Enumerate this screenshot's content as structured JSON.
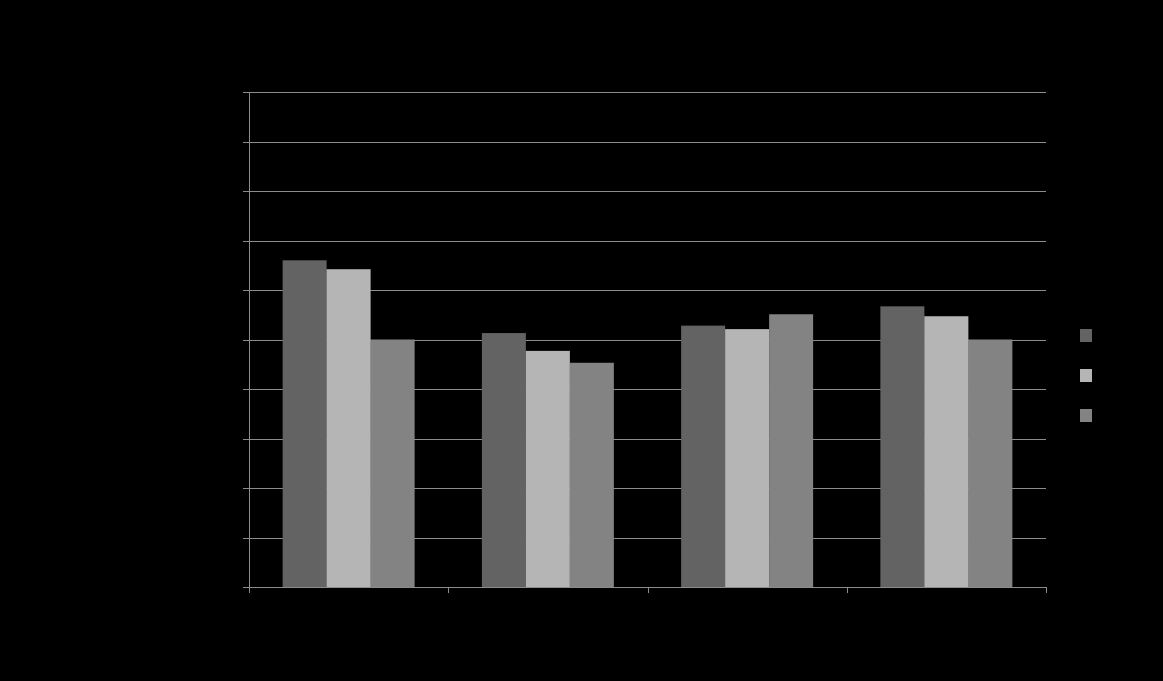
{
  "chart_data": {
    "type": "bar",
    "categories": [
      "",
      "",
      "",
      ""
    ],
    "series": [
      {
        "color": "#636363",
        "values": [
          66,
          51.3,
          52.8,
          56.7
        ]
      },
      {
        "color": "#b5b5b5",
        "values": [
          64.2,
          47.7,
          52.1,
          54.7
        ]
      },
      {
        "color": "#838383",
        "values": [
          50,
          45.3,
          55.1,
          50
        ]
      }
    ],
    "title": "",
    "xlabel": "",
    "ylabel": "",
    "ylim": [
      0,
      100
    ],
    "grid": true,
    "legend": "right",
    "colors": {
      "background": "#000000",
      "gridline": "#8c8c8c",
      "axis": "#8c8c8c"
    }
  }
}
